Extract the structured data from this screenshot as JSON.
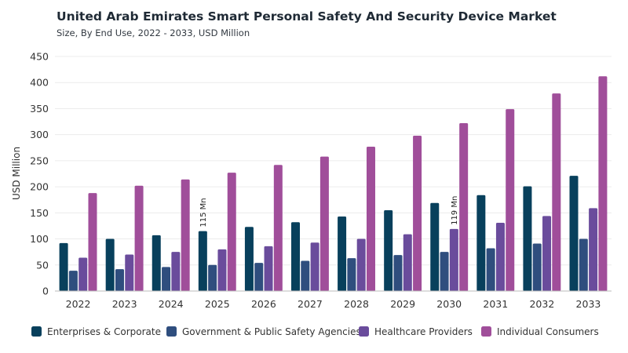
{
  "title": "United Arab Emirates Smart Personal Safety And Security Device Market",
  "subtitle": "Size, By End Use, 2022 - 2033, USD Million",
  "chart_data": {
    "type": "bar",
    "title": "United Arab Emirates Smart Personal Safety And Security Device Market",
    "subtitle": "Size, By End Use, 2022 - 2033, USD Million",
    "xlabel": "",
    "ylabel": "USD Million",
    "ylim": [
      0,
      450
    ],
    "yticks": [
      0,
      50,
      100,
      150,
      200,
      250,
      300,
      350,
      400,
      450
    ],
    "grid": true,
    "legend_position": "bottom",
    "categories": [
      "2022",
      "2023",
      "2024",
      "2025",
      "2026",
      "2027",
      "2028",
      "2029",
      "2030",
      "2031",
      "2032",
      "2033"
    ],
    "series": [
      {
        "name": "Enterprises & Corporate",
        "color": "#08405c",
        "values": [
          92,
          100,
          107,
          115,
          123,
          132,
          143,
          155,
          169,
          184,
          201,
          221
        ]
      },
      {
        "name": "Government & Public Safety Agencies",
        "color": "#2f4e7e",
        "values": [
          39,
          42,
          46,
          50,
          54,
          58,
          63,
          69,
          75,
          82,
          91,
          100
        ]
      },
      {
        "name": "Healthcare Providers",
        "color": "#6a4c9c",
        "values": [
          64,
          70,
          75,
          80,
          86,
          93,
          100,
          109,
          119,
          131,
          144,
          159
        ]
      },
      {
        "name": "Individual Consumers",
        "color": "#a04e9a",
        "values": [
          188,
          202,
          214,
          227,
          242,
          258,
          277,
          298,
          322,
          349,
          379,
          412
        ]
      }
    ],
    "annotations": [
      {
        "category": "2025",
        "series": "Enterprises & Corporate",
        "text": "115 Mn"
      },
      {
        "category": "2030",
        "series": "Healthcare Providers",
        "text": "119 Mn"
      }
    ]
  }
}
